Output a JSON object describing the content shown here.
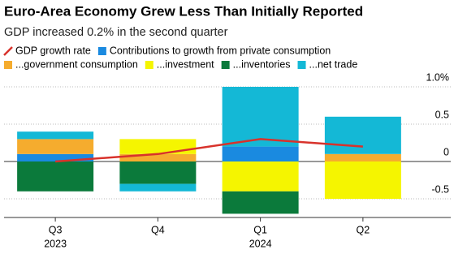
{
  "chart_data": {
    "type": "stacked_bar_line",
    "title": "Euro-Area Economy Grew Less Than Initially Reported",
    "subtitle": "GDP increased 0.2% in the second quarter",
    "categories": [
      "Q3",
      "Q4",
      "Q1",
      "Q2"
    ],
    "year_labels": [
      "2023",
      null,
      "2024",
      null
    ],
    "line": {
      "name": "GDP growth rate",
      "color": "#d8322b",
      "values": [
        0.0,
        0.1,
        0.3,
        0.2
      ]
    },
    "series": [
      {
        "name": "Contributions to growth from private consumption",
        "color": "#1a8ae0",
        "values": [
          0.1,
          0.0,
          0.2,
          0.0
        ]
      },
      {
        "name": "...government consumption",
        "color": "#f5ac2e",
        "values": [
          0.2,
          0.1,
          0.0,
          0.1
        ]
      },
      {
        "name": "...investment",
        "color": "#f5f500",
        "values": [
          0.0,
          0.2,
          -0.4,
          -0.5
        ]
      },
      {
        "name": "...inventories",
        "color": "#0b7a3b",
        "values": [
          -0.4,
          -0.3,
          -0.3,
          0.0
        ]
      },
      {
        "name": "...net trade",
        "color": "#14b8d6",
        "values": [
          0.1,
          -0.1,
          0.8,
          0.5
        ]
      }
    ],
    "ylim": [
      -0.75,
      1.0
    ],
    "yticks": [
      {
        "value": 1.0,
        "label": "1.0%"
      },
      0.5,
      0,
      -0.5
    ],
    "grid": true
  }
}
